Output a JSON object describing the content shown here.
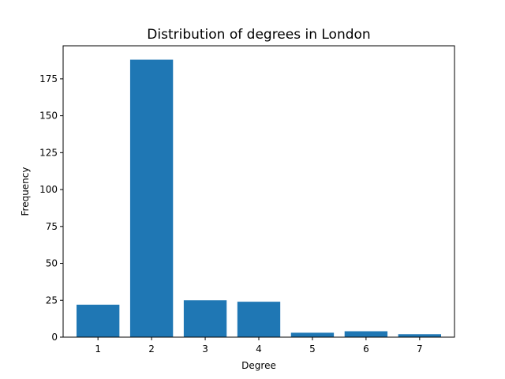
{
  "chart_data": {
    "type": "bar",
    "title": "Distribution of degrees in London",
    "xlabel": "Degree",
    "ylabel": "Frequency",
    "categories": [
      "1",
      "2",
      "3",
      "4",
      "5",
      "6",
      "7"
    ],
    "values": [
      22,
      188,
      25,
      24,
      3,
      4,
      2
    ],
    "xlim": [
      0.35,
      7.65
    ],
    "ylim": [
      0,
      197.4
    ],
    "yticks": [
      0,
      25,
      50,
      75,
      100,
      125,
      150,
      175
    ],
    "bar_color": "#1f77b4",
    "grid": false,
    "legend": false
  }
}
